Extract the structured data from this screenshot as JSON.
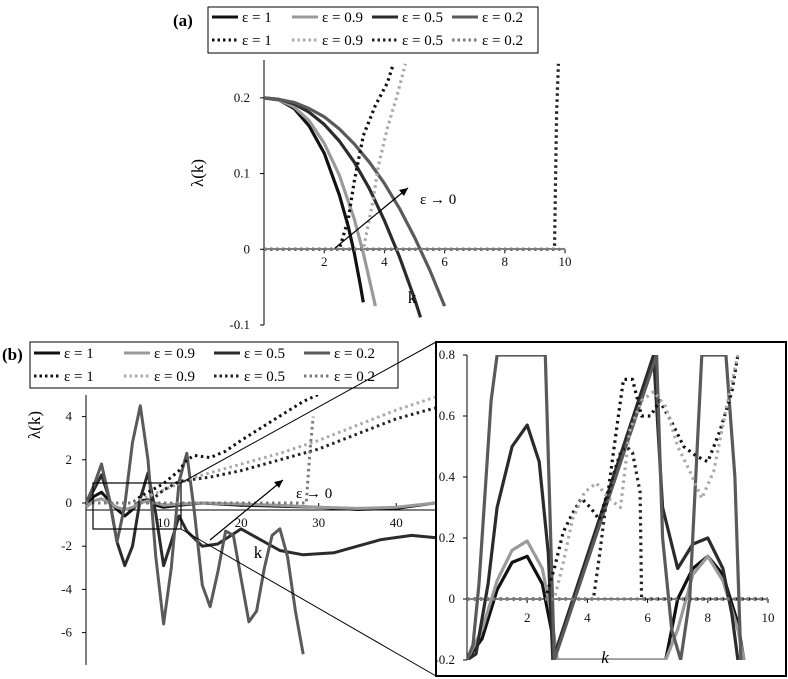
{
  "figure": {
    "panel_a_label": "(a)",
    "panel_b_label": "(b)"
  },
  "chart_data": [
    {
      "id": "a",
      "type": "line",
      "title": "",
      "xlabel": "k",
      "ylabel": "λ(k)",
      "xlim": [
        0,
        10
      ],
      "ylim": [
        -0.1,
        0.25
      ],
      "xticks": [
        2,
        4,
        6,
        8,
        10
      ],
      "yticks": [
        -0.1,
        0,
        0.1,
        0.2
      ],
      "xtick_labels": [
        "2",
        "4",
        "6",
        "8",
        "10"
      ],
      "ytick_labels": [
        "-0.1",
        "0",
        "0.1",
        "0.2"
      ],
      "annotation": "ε → 0",
      "legend": {
        "position": "top",
        "entries": [
          {
            "label": "ε = 1",
            "style": "solid",
            "color": "#111111"
          },
          {
            "label": "ε = 0.9",
            "style": "solid",
            "color": "#9a9a9a"
          },
          {
            "label": "ε = 0.5",
            "style": "solid",
            "color": "#2b2b2b"
          },
          {
            "label": "ε = 0.2",
            "style": "solid",
            "color": "#5a5a5a"
          },
          {
            "label": "ε = 1",
            "style": "dotted",
            "color": "#111111"
          },
          {
            "label": "ε = 0.9",
            "style": "dotted",
            "color": "#a8a8a8"
          },
          {
            "label": "ε = 0.5",
            "style": "dotted",
            "color": "#222222"
          },
          {
            "label": "ε = 0.2",
            "style": "dotted",
            "color": "#7a7a7a"
          }
        ]
      },
      "series": [
        {
          "name": "ε = 1",
          "style": "solid",
          "color": "#111111",
          "x": [
            0,
            0.5,
            1,
            1.5,
            2,
            2.5,
            2.8,
            3,
            3.2,
            3.3
          ],
          "y": [
            0.2,
            0.197,
            0.186,
            0.163,
            0.127,
            0.072,
            0.03,
            -0.005,
            -0.047,
            -0.07
          ]
        },
        {
          "name": "ε = 0.9",
          "style": "solid",
          "color": "#9a9a9a",
          "x": [
            0,
            0.5,
            1,
            1.5,
            2,
            2.5,
            3,
            3.3,
            3.5,
            3.7
          ],
          "y": [
            0.2,
            0.197,
            0.188,
            0.17,
            0.14,
            0.098,
            0.04,
            -0.005,
            -0.04,
            -0.075
          ]
        },
        {
          "name": "ε = 0.5",
          "style": "solid",
          "color": "#2b2b2b",
          "x": [
            0,
            0.5,
            1,
            1.5,
            2,
            2.5,
            3,
            3.5,
            4,
            4.5,
            5,
            5.2
          ],
          "y": [
            0.2,
            0.198,
            0.192,
            0.181,
            0.165,
            0.143,
            0.115,
            0.08,
            0.038,
            -0.01,
            -0.065,
            -0.09
          ]
        },
        {
          "name": "ε = 0.2",
          "style": "solid",
          "color": "#5a5a5a",
          "x": [
            0,
            0.5,
            1,
            1.5,
            2,
            2.5,
            3,
            3.5,
            4,
            4.5,
            5,
            5.5,
            6
          ],
          "y": [
            0.2,
            0.198,
            0.194,
            0.186,
            0.175,
            0.159,
            0.139,
            0.115,
            0.087,
            0.054,
            0.016,
            -0.027,
            -0.075
          ]
        },
        {
          "name": "ε = 1",
          "style": "dotted",
          "color": "#111111",
          "x": [
            0,
            2.5,
            2.8,
            3,
            3.3,
            3.7,
            4.1,
            4.3
          ],
          "y": [
            0,
            0,
            0.04,
            0.09,
            0.15,
            0.19,
            0.22,
            0.245
          ]
        },
        {
          "name": "ε = 0.9",
          "style": "dotted",
          "color": "#a8a8a8",
          "x": [
            0,
            3.3,
            3.6,
            3.8,
            4.1,
            4.4,
            4.7
          ],
          "y": [
            0,
            0,
            0.06,
            0.11,
            0.16,
            0.2,
            0.245
          ]
        },
        {
          "name": "ε = 0.5",
          "style": "dotted",
          "color": "#222222",
          "x": [
            0,
            9.65,
            9.68,
            9.72,
            9.78
          ],
          "y": [
            0,
            0,
            0.08,
            0.18,
            0.245
          ]
        },
        {
          "name": "ε = 0.2",
          "style": "dotted",
          "color": "#7a7a7a",
          "x": [
            0,
            10
          ],
          "y": [
            0,
            0
          ]
        }
      ]
    },
    {
      "id": "b",
      "type": "line",
      "title": "",
      "xlabel": "k",
      "ylabel": "λ(k)",
      "xlim": [
        0,
        45
      ],
      "ylim": [
        -7.5,
        5
      ],
      "xticks": [
        10,
        20,
        30,
        40
      ],
      "yticks": [
        -6,
        -4,
        -2,
        0,
        2,
        4
      ],
      "xtick_labels": [
        "10",
        "20",
        "30",
        "40"
      ],
      "ytick_labels": [
        "-6",
        "-4",
        "-2",
        "0",
        "2",
        "4"
      ],
      "annotation": "ε → 0",
      "legend": {
        "position": "top",
        "entries": [
          {
            "label": "ε = 1",
            "style": "solid",
            "color": "#111111"
          },
          {
            "label": "ε = 0.9",
            "style": "solid",
            "color": "#9a9a9a"
          },
          {
            "label": "ε = 0.5",
            "style": "solid",
            "color": "#2b2b2b"
          },
          {
            "label": "ε = 0.2",
            "style": "solid",
            "color": "#5a5a5a"
          },
          {
            "label": "ε = 1",
            "style": "dotted",
            "color": "#111111"
          },
          {
            "label": "ε = 0.9",
            "style": "dotted",
            "color": "#a8a8a8"
          },
          {
            "label": "ε = 0.5",
            "style": "dotted",
            "color": "#222222"
          },
          {
            "label": "ε = 0.2",
            "style": "dotted",
            "color": "#7a7a7a"
          }
        ]
      },
      "series": [
        {
          "name": "ε = 1",
          "style": "solid",
          "color": "#111111",
          "x": [
            0,
            1,
            2,
            3,
            4,
            5,
            6,
            7,
            8,
            9,
            10,
            12,
            15,
            20,
            25,
            30,
            35,
            40,
            45
          ],
          "y": [
            -0.2,
            0.3,
            0.5,
            0.1,
            -0.3,
            -0.6,
            -0.3,
            0.1,
            0.15,
            -0.1,
            -0.2,
            -0.1,
            0,
            -0.1,
            -0.15,
            -0.2,
            -0.3,
            -0.25,
            0
          ]
        },
        {
          "name": "ε = 0.9",
          "style": "solid",
          "color": "#9a9a9a",
          "x": [
            0,
            1,
            2,
            3,
            4,
            5,
            6,
            7,
            8,
            9,
            10,
            12,
            15,
            20,
            25,
            30,
            35,
            40,
            45
          ],
          "y": [
            -0.2,
            0.1,
            0.2,
            0,
            -0.2,
            -0.3,
            -0.2,
            0,
            0.1,
            0,
            -0.1,
            -0.05,
            0,
            -0.05,
            -0.1,
            -0.2,
            -0.25,
            -0.2,
            0
          ]
        },
        {
          "name": "ε = 0.5",
          "style": "solid",
          "color": "#2b2b2b",
          "x": [
            0,
            1,
            2,
            3,
            4,
            5,
            6,
            7,
            8,
            9,
            10,
            11,
            12,
            13,
            15,
            17,
            20,
            22,
            25,
            28,
            32,
            35,
            38,
            42,
            45
          ],
          "y": [
            0,
            0.6,
            1.3,
            0.2,
            -1.8,
            -2.9,
            -2.0,
            0.2,
            1.4,
            -0.5,
            -2.9,
            -1.8,
            -0.6,
            -1.3,
            -2.0,
            -1.9,
            -1.2,
            -1.6,
            -2.2,
            -2.4,
            -2.3,
            -2.0,
            -1.7,
            -1.5,
            -1.6
          ]
        },
        {
          "name": "ε = 0.2",
          "style": "solid",
          "color": "#5a5a5a",
          "x": [
            0,
            1,
            2,
            3,
            4,
            5,
            6,
            7,
            8,
            9,
            10,
            11,
            12,
            13,
            14,
            15,
            16,
            17,
            18,
            19,
            20,
            21,
            22,
            23,
            24,
            25,
            26,
            27,
            28
          ],
          "y": [
            0,
            0.8,
            1.8,
            0.2,
            -1.8,
            -0.1,
            2.8,
            4.5,
            2.0,
            -2.5,
            -5.6,
            -3.0,
            1.0,
            2.3,
            -0.5,
            -3.8,
            -4.8,
            -3.2,
            -1.3,
            -1.5,
            -3.5,
            -5.5,
            -5.0,
            -3.0,
            -1.5,
            -1.2,
            -2.5,
            -5.0,
            -7.0
          ]
        },
        {
          "name": "ε = 1",
          "style": "dotted",
          "color": "#111111",
          "x": [
            0,
            6,
            7,
            8,
            9,
            10,
            11,
            12,
            13,
            14,
            16,
            18,
            20,
            24,
            28,
            31
          ],
          "y": [
            0,
            0,
            0.3,
            0.5,
            0.7,
            0.9,
            1.2,
            1.5,
            2.0,
            2.2,
            2.1,
            2.4,
            2.9,
            3.8,
            4.7,
            5.2
          ]
        },
        {
          "name": "ε = 0.9",
          "style": "dotted",
          "color": "#a8a8a8",
          "x": [
            0,
            6,
            8,
            10,
            12,
            14,
            16,
            20,
            25,
            30,
            35,
            40,
            45
          ],
          "y": [
            0,
            0,
            0.3,
            0.6,
            0.9,
            1.2,
            1.4,
            1.8,
            2.3,
            2.9,
            3.6,
            4.3,
            4.9
          ]
        },
        {
          "name": "ε = 0.5",
          "style": "dotted",
          "color": "#222222",
          "x": [
            0,
            8,
            10,
            12,
            14,
            16,
            20,
            25,
            30,
            35,
            40,
            45
          ],
          "y": [
            0,
            0,
            0.6,
            1.0,
            1.1,
            1.2,
            1.5,
            2.0,
            2.5,
            3.2,
            3.9,
            4.4
          ]
        },
        {
          "name": "ε = 0.2",
          "style": "dotted",
          "color": "#7a7a7a",
          "x": [
            0,
            28.4,
            28.6,
            28.9,
            29.3
          ],
          "y": [
            0,
            0,
            1.0,
            2.5,
            4.0
          ]
        }
      ]
    },
    {
      "id": "b-inset",
      "type": "line",
      "title": "",
      "xlabel": "k",
      "ylabel": "",
      "xlim": [
        0,
        10
      ],
      "ylim": [
        -0.2,
        0.8
      ],
      "xticks": [
        2,
        4,
        6,
        8,
        10
      ],
      "yticks": [
        -0.2,
        0,
        0.2,
        0.4,
        0.6,
        0.8
      ],
      "xtick_labels": [
        "2",
        "4",
        "6",
        "8",
        "10"
      ],
      "ytick_labels": [
        "-0.2",
        "0",
        "0.2",
        "0.4",
        "0.6",
        "0.8"
      ],
      "series": [
        {
          "name": "ε = 1",
          "style": "solid",
          "color": "#111111",
          "x": [
            0,
            0.5,
            1,
            1.5,
            2,
            2.5,
            2.8,
            3.0,
            6.6,
            7,
            7.5,
            8,
            8.5,
            9,
            9.2
          ],
          "y": [
            -0.2,
            -0.13,
            0.03,
            0.12,
            0.14,
            0.05,
            -0.1,
            -0.2,
            -0.2,
            0.0,
            0.1,
            0.14,
            0.08,
            -0.08,
            -0.2
          ]
        },
        {
          "name": "ε = 0.9",
          "style": "solid",
          "color": "#9a9a9a",
          "x": [
            0,
            0.5,
            1,
            1.5,
            2,
            2.5,
            2.8,
            3.0,
            6.6,
            7,
            7.5,
            8,
            8.5,
            9,
            9.2
          ],
          "y": [
            -0.2,
            -0.1,
            0.06,
            0.16,
            0.19,
            0.1,
            -0.05,
            -0.2,
            -0.2,
            -0.1,
            0.08,
            0.14,
            0.06,
            -0.1,
            -0.2
          ]
        },
        {
          "name": "ε = 0.5",
          "style": "solid",
          "color": "#2b2b2b",
          "x": [
            0,
            0.3,
            0.7,
            1,
            1.5,
            2,
            2.4,
            2.7,
            2.85,
            6.2,
            6.5,
            7,
            7.5,
            8,
            8.5,
            8.8,
            9.0
          ],
          "y": [
            -0.2,
            -0.18,
            0.05,
            0.3,
            0.5,
            0.57,
            0.45,
            0.15,
            -0.2,
            0.8,
            0.3,
            0.1,
            0.18,
            0.2,
            0.1,
            -0.05,
            -0.2
          ]
        },
        {
          "name": "ε = 0.2",
          "style": "solid",
          "color": "#5a5a5a",
          "x": [
            0,
            0.2,
            0.4,
            0.6,
            0.8,
            1,
            1.2,
            1.6,
            2.0,
            2.2,
            2.6,
            2.9,
            6.3,
            6.5,
            6.8,
            7.1,
            7.4,
            7.8,
            8.2,
            8.6,
            8.9,
            9.1
          ],
          "y": [
            -0.2,
            -0.15,
            0.05,
            0.35,
            0.65,
            0.8,
            0.8,
            0.8,
            0.8,
            0.8,
            0.8,
            -0.2,
            0.8,
            0.2,
            -0.1,
            -0.2,
            0.0,
            0.8,
            0.8,
            0.8,
            0.4,
            -0.2
          ]
        },
        {
          "name": "ε = 1",
          "style": "dotted",
          "color": "#111111",
          "x": [
            0,
            2.6,
            2.9,
            3.2,
            3.5,
            3.8,
            4.1,
            4.4,
            4.7,
            5.0,
            5.2,
            5.5,
            5.8,
            6.1,
            6.4,
            6.8,
            7.2,
            7.6,
            8.0,
            8.4,
            8.8,
            9.0
          ],
          "y": [
            0,
            0,
            0.1,
            0.22,
            0.28,
            0.33,
            0.3,
            0.26,
            0.36,
            0.58,
            0.72,
            0.72,
            0.6,
            0.6,
            0.65,
            0.58,
            0.5,
            0.47,
            0.45,
            0.55,
            0.68,
            0.8
          ]
        },
        {
          "name": "ε = 0.9",
          "style": "dotted",
          "color": "#a8a8a8",
          "x": [
            0,
            2.9,
            3.2,
            3.5,
            3.9,
            4.3,
            4.7,
            5.1,
            5.4,
            5.8,
            6.2,
            6.6,
            7.0,
            7.4,
            7.8,
            8.2,
            8.6,
            9.0
          ],
          "y": [
            0,
            0,
            0.12,
            0.26,
            0.35,
            0.38,
            0.33,
            0.3,
            0.55,
            0.65,
            0.68,
            0.63,
            0.5,
            0.42,
            0.33,
            0.42,
            0.62,
            0.8
          ]
        },
        {
          "name": "ε = 0.5",
          "style": "dotted",
          "color": "#222222",
          "x": [
            0,
            4.2,
            4.4,
            4.6,
            4.9,
            5.1,
            5.3,
            5.5,
            5.75,
            5.8,
            10
          ],
          "y": [
            0,
            0,
            0.14,
            0.3,
            0.42,
            0.48,
            0.5,
            0.48,
            0.35,
            0,
            0
          ]
        },
        {
          "name": "ε = 0.2",
          "style": "dotted",
          "color": "#7a7a7a",
          "x": [
            0,
            10
          ],
          "y": [
            0,
            0
          ]
        }
      ]
    }
  ]
}
